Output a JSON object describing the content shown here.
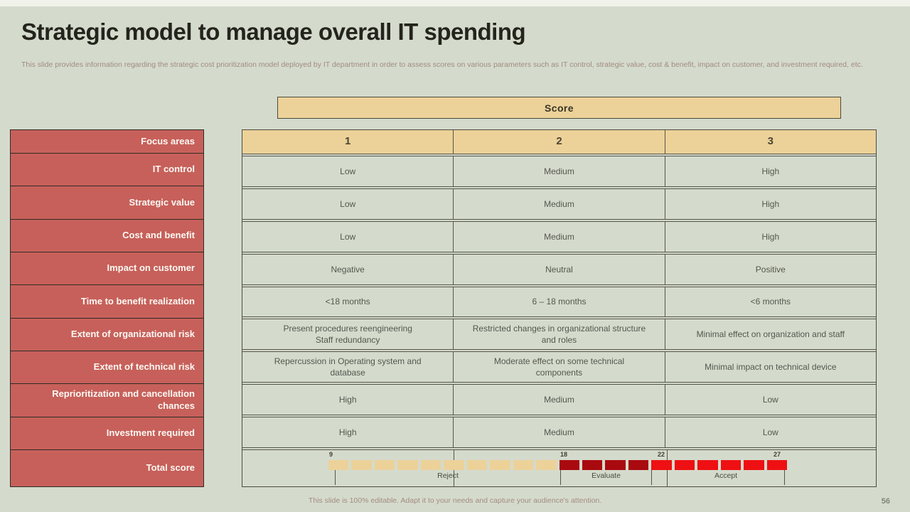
{
  "slide": {
    "title": "Strategic model to manage overall IT spending",
    "subtitle": "This slide provides information regarding the strategic cost prioritization model deployed by IT department in order to assess scores on various parameters such as IT control, strategic value, cost & benefit, impact on customer, and investment required, etc.",
    "footer": "This slide is 100% editable. Adapt it to your needs and capture your audience's attention.",
    "page_number": "56"
  },
  "score_header": "Score",
  "focus_column": {
    "header": "Focus areas",
    "items": [
      "IT control",
      "Strategic value",
      "Cost and benefit",
      "Impact on customer",
      "Time to benefit realization",
      "Extent of organizational risk",
      "Extent of technical risk",
      "Reprioritization and cancellation chances",
      "Investment required",
      "Total score"
    ]
  },
  "table": {
    "headers": [
      "1",
      "2",
      "3"
    ],
    "rows": [
      [
        "Low",
        "Medium",
        "High"
      ],
      [
        "Low",
        "Medium",
        "High"
      ],
      [
        "Low",
        "Medium",
        "High"
      ],
      [
        "Negative",
        "Neutral",
        "Positive"
      ],
      [
        "<18 months",
        "6 – 18 months",
        "<6 months"
      ],
      [
        "Present procedures reengineering\nStaff redundancy",
        "Restricted changes in organizational structure and roles",
        "Minimal effect on organization and staff"
      ],
      [
        "Repercussion in Operating system and database",
        "Moderate effect on some technical components",
        "Minimal impact on technical device"
      ],
      [
        "High",
        "Medium",
        "Low"
      ],
      [
        "High",
        "Medium",
        "Low"
      ]
    ]
  },
  "scale": {
    "markers": [
      "9",
      "18",
      "22",
      "27"
    ],
    "segments": [
      {
        "label": "Reject",
        "blocks": 10,
        "color": "#ecd299"
      },
      {
        "label": "Evaluate",
        "blocks": 4,
        "color": "#a90a0f"
      },
      {
        "label": "Accept",
        "blocks": 6,
        "color": "#ee1013"
      }
    ]
  },
  "colors": {
    "background": "#d4dbcd",
    "accent_red": "#c7605a",
    "tan": "#ecd299",
    "dark_red": "#a90a0f",
    "bright_red": "#ee1013"
  }
}
